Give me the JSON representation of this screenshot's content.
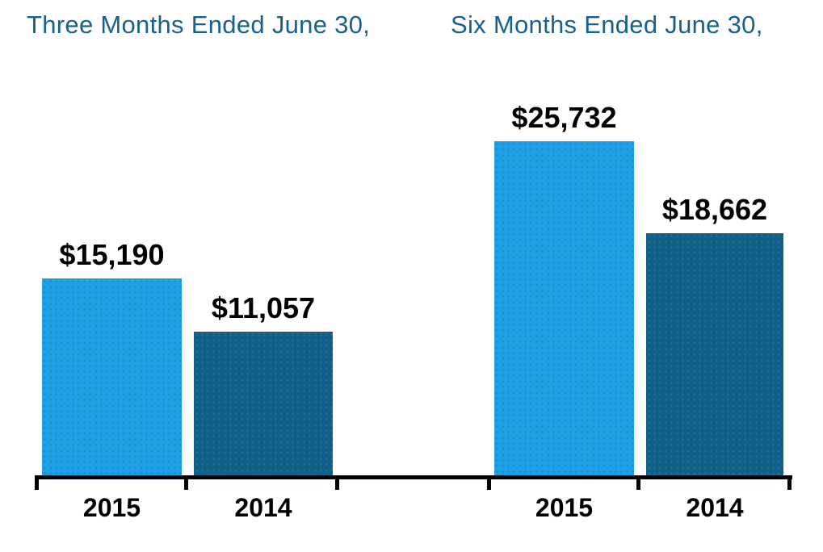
{
  "chart_data": {
    "type": "bar",
    "title": "",
    "xlabel": "",
    "ylabel": "",
    "ylim": [
      0,
      26500
    ],
    "grid": false,
    "legend": false,
    "value_prefix": "$",
    "title_color": "#16618E",
    "axis_color": "#000000",
    "label_color": "#000000",
    "series_colors": {
      "2015": "#1F9FE4",
      "2014": "#11608C"
    },
    "groups": [
      {
        "title": "Three Months Ended June 30,",
        "bars": [
          {
            "category": "2015",
            "value": 15190,
            "label": "$15,190",
            "color": "#1F9FE4",
            "dot_color": "rgba(10,80,150,0.35)"
          },
          {
            "category": "2014",
            "value": 11057,
            "label": "$11,057",
            "color": "#11608C",
            "dot_color": "rgba(110,170,110,0.35)"
          }
        ]
      },
      {
        "title": "Six Months Ended June 30,",
        "bars": [
          {
            "category": "2015",
            "value": 25732,
            "label": "$25,732",
            "color": "#1F9FE4",
            "dot_color": "rgba(10,80,150,0.35)"
          },
          {
            "category": "2014",
            "value": 18662,
            "label": "$18,662",
            "color": "#11608C",
            "dot_color": "rgba(110,170,110,0.35)"
          }
        ]
      }
    ]
  }
}
